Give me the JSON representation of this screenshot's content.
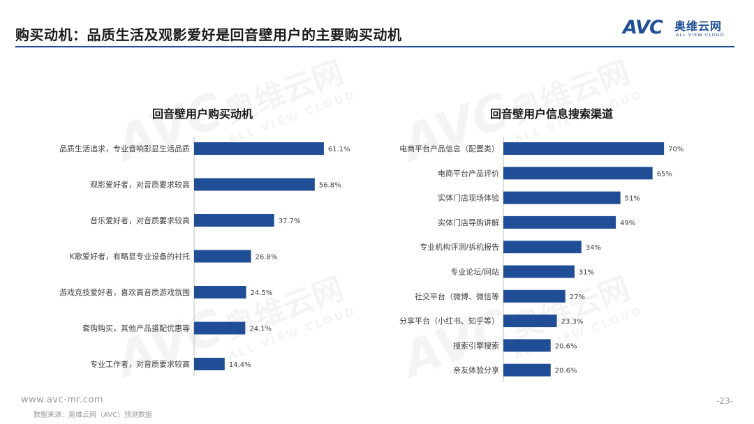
{
  "header": {
    "title": "购买动机：品质生活及观影爱好是回音壁用户的主要购买动机",
    "logo_mark": "AVC",
    "logo_cn": "奥维云网",
    "logo_en": "ALL VIEW CLOUD"
  },
  "watermark": {
    "mark": "AVC",
    "cn": "奥维云网",
    "en": "ALL VIEW CLOUD"
  },
  "colors": {
    "bar": "#1f4e96",
    "accent": "#1f4e96",
    "axis": "#bfbfbf"
  },
  "chart_data": [
    {
      "type": "bar",
      "orientation": "horizontal",
      "title": "回音壁用户购买动机",
      "categories": [
        "品质生活追求，专业音响影显生活品质",
        "观影爱好者，对音质要求较高",
        "音乐爱好者，对音质要求较高",
        "K歌爱好者，有略显专业设备的衬托",
        "游戏竞技爱好者，喜欢高音质游戏氛围",
        "套购购买，其他产品搭配优惠等",
        "专业工作者，对音质要求较高"
      ],
      "values": [
        61.1,
        56.8,
        37.7,
        26.8,
        24.5,
        24.1,
        14.4
      ],
      "value_labels": [
        "61.1%",
        "56.8%",
        "37.7%",
        "26.8%",
        "24.5%",
        "24.1%",
        "14.4%"
      ],
      "xlim": [
        0,
        70
      ]
    },
    {
      "type": "bar",
      "orientation": "horizontal",
      "title": "回音壁用户信息搜索渠道",
      "categories": [
        "电商平台产品信息（配置类）",
        "电商平台产品评价",
        "实体门店现场体验",
        "实体门店导购讲解",
        "专业机构评测/拆机报告",
        "专业论坛/网站",
        "社交平台（微博、微信等",
        "分享平台（小红书、知乎等）",
        "搜索引擎搜索",
        "亲友体验分享"
      ],
      "values": [
        70,
        65,
        51,
        49,
        34,
        31,
        27,
        23.3,
        20.6,
        20.6
      ],
      "value_labels": [
        "70%",
        "65%",
        "51%",
        "49%",
        "34%",
        "31%",
        "27%",
        "23.3%",
        "20.6%",
        "20.6%"
      ],
      "xlim": [
        0,
        80
      ]
    }
  ],
  "footer": {
    "url": "www.avc-mr.com",
    "source": "数据来源：奥维云网（AVC）预测数据",
    "page": "-23-"
  }
}
